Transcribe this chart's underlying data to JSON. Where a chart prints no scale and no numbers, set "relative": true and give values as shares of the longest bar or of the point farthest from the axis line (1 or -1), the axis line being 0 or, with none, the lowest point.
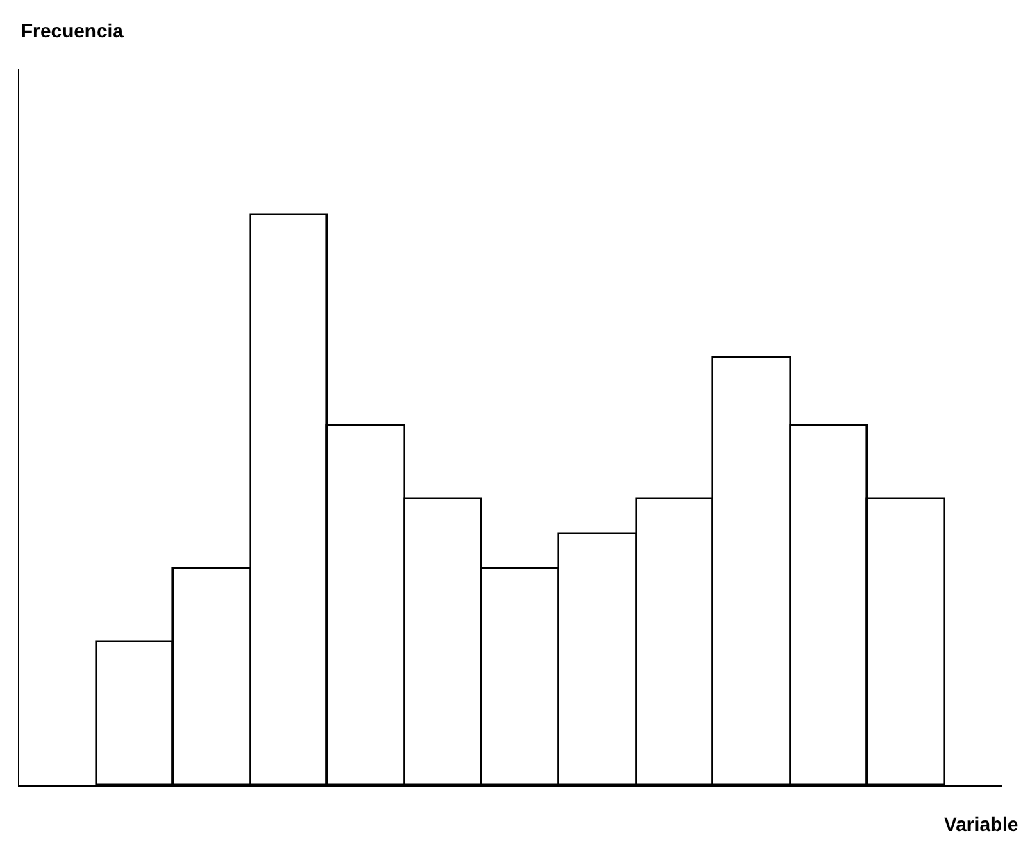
{
  "chart_data": {
    "type": "bar",
    "relative": true,
    "xlabel": "Variable",
    "annotations": [
      "Frecuencia"
    ],
    "categories": [
      null,
      null,
      null,
      null,
      null,
      null,
      null,
      null,
      null,
      null,
      null
    ],
    "values": [
      0.25,
      0.38,
      1,
      0.63,
      0.5,
      0.38,
      0.44,
      0.5,
      0.75,
      0.63,
      0.5
    ],
    "color": "#ffffff"
  }
}
